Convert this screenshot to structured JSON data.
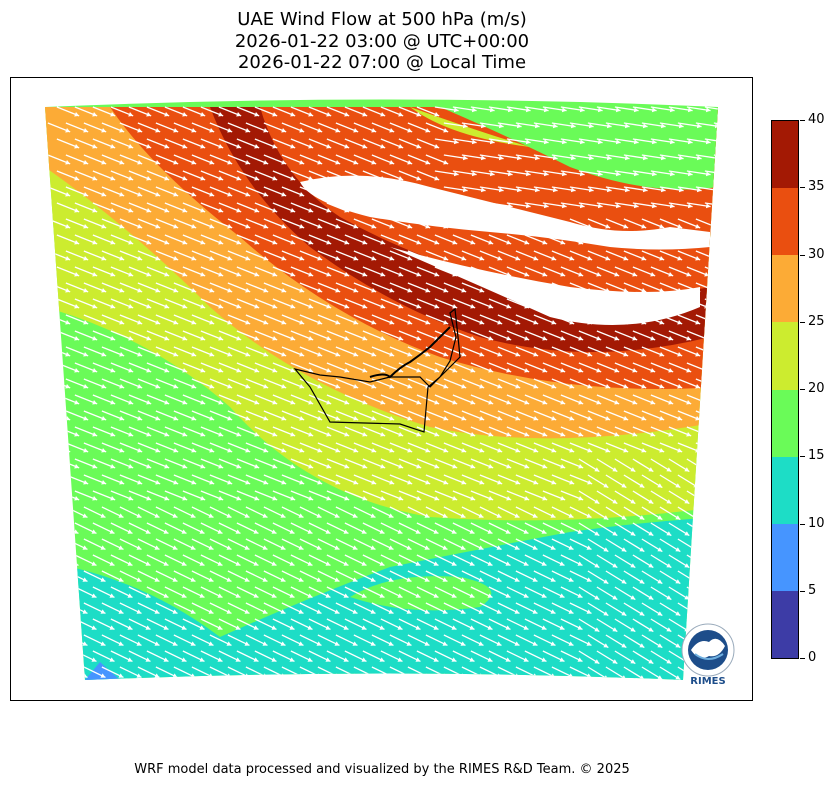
{
  "title": {
    "line1": "UAE Wind Flow at 500 hPa (m/s)",
    "line2": "2026-01-22 03:00 @ UTC+00:00",
    "line3": "2026-01-22 07:00 @ Local Time"
  },
  "colorbar": {
    "levels": [
      {
        "min": 0,
        "max": 5,
        "color": "#3d3ca6"
      },
      {
        "min": 5,
        "max": 10,
        "color": "#4695ff"
      },
      {
        "min": 10,
        "max": 15,
        "color": "#1dddc6"
      },
      {
        "min": 15,
        "max": 20,
        "color": "#6afb58"
      },
      {
        "min": 20,
        "max": 25,
        "color": "#ccec2f"
      },
      {
        "min": 25,
        "max": 30,
        "color": "#fcab36"
      },
      {
        "min": 30,
        "max": 35,
        "color": "#ea4f10"
      },
      {
        "min": 35,
        "max": 40,
        "color": "#a31904"
      }
    ],
    "tick_labels": [
      "0",
      "5",
      "10",
      "15",
      "20",
      "25",
      "30",
      "35",
      "40"
    ]
  },
  "map": {
    "variable": "Wind speed at 500 hPa",
    "units": "m/s",
    "region": "UAE",
    "vector_color": "#ffffff",
    "border_color": "#000000"
  },
  "logo": {
    "text": "RIMES",
    "icon": "rimes-logo-icon"
  },
  "footer": "WRF model data processed and visualized by the RIMES R&D Team. © 2025"
}
